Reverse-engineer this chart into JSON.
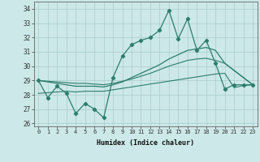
{
  "xlabel": "Humidex (Indice chaleur)",
  "x_values": [
    0,
    1,
    2,
    3,
    4,
    5,
    6,
    7,
    8,
    9,
    10,
    11,
    12,
    13,
    14,
    15,
    16,
    17,
    18,
    19,
    20,
    21,
    22,
    23
  ],
  "line1": [
    29.0,
    27.8,
    28.6,
    28.1,
    26.7,
    27.4,
    27.0,
    26.4,
    29.2,
    30.7,
    31.5,
    31.8,
    32.0,
    32.5,
    33.9,
    31.9,
    33.3,
    31.1,
    31.8,
    30.2,
    28.4,
    28.7,
    28.7,
    28.7
  ],
  "line2_x": [
    0,
    1,
    2,
    3,
    4,
    5,
    6,
    7,
    8,
    9,
    10,
    11,
    12,
    13,
    14,
    15,
    16,
    17,
    18,
    19,
    20,
    23
  ],
  "line2_y": [
    29.0,
    28.9,
    28.8,
    28.7,
    28.6,
    28.6,
    28.6,
    28.55,
    28.7,
    28.9,
    29.2,
    29.5,
    29.8,
    30.1,
    30.5,
    30.8,
    31.1,
    31.2,
    31.3,
    31.1,
    30.2,
    28.7
  ],
  "line3_x": [
    0,
    1,
    2,
    3,
    4,
    5,
    6,
    7,
    8,
    9,
    10,
    11,
    12,
    13,
    14,
    15,
    16,
    17,
    18,
    19,
    20,
    23
  ],
  "line3_y": [
    29.0,
    28.95,
    28.9,
    28.85,
    28.8,
    28.8,
    28.75,
    28.7,
    28.8,
    28.95,
    29.1,
    29.3,
    29.5,
    29.75,
    30.0,
    30.2,
    30.4,
    30.5,
    30.55,
    30.4,
    30.2,
    28.7
  ],
  "line4_x": [
    0,
    1,
    2,
    3,
    4,
    5,
    6,
    7,
    8,
    9,
    10,
    11,
    12,
    13,
    14,
    15,
    16,
    17,
    18,
    19,
    20,
    21,
    22,
    23
  ],
  "line4_y": [
    28.1,
    28.15,
    28.2,
    28.25,
    28.2,
    28.25,
    28.25,
    28.25,
    28.35,
    28.45,
    28.55,
    28.65,
    28.75,
    28.85,
    28.95,
    29.05,
    29.15,
    29.25,
    29.35,
    29.45,
    29.5,
    28.5,
    28.65,
    28.7
  ],
  "line_color": "#2d7d6d",
  "bg_color": "#cce8e8",
  "grid_color": "#aacccc",
  "ylim": [
    25.8,
    34.5
  ],
  "yticks": [
    26,
    27,
    28,
    29,
    30,
    31,
    32,
    33,
    34
  ],
  "marker": "D",
  "marker_size": 2.2
}
